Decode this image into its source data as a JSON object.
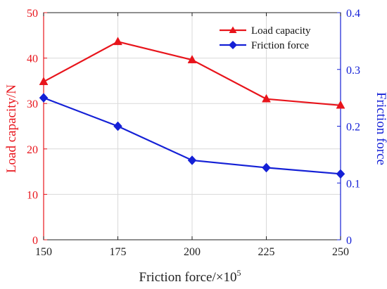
{
  "chart_data": {
    "type": "line",
    "x": [
      150,
      175,
      200,
      225,
      250
    ],
    "xlim": [
      150,
      250
    ],
    "x_ticks": [
      "150",
      "175",
      "200",
      "225",
      "250"
    ],
    "xlabel": "Friction force/×10",
    "xlabel_sup": "5",
    "y_left": {
      "label": "Load capacity/N",
      "lim": [
        0,
        50
      ],
      "ticks": [
        "0",
        "10",
        "20",
        "30",
        "40",
        "50"
      ],
      "color": "#e8141b"
    },
    "y_right": {
      "label": "Friction force",
      "lim": [
        0,
        0.4
      ],
      "ticks": [
        "0",
        "0.1",
        "0.2",
        "0.3",
        "0.4"
      ],
      "color": "#1420d6"
    },
    "grid": true,
    "legend_position": "top-right",
    "series": [
      {
        "name": "Load capacity",
        "axis": "left",
        "marker": "triangle",
        "color": "#e8141b",
        "values": [
          34.8,
          43.6,
          39.6,
          31.0,
          29.6
        ]
      },
      {
        "name": "Friction force",
        "axis": "right",
        "marker": "diamond",
        "color": "#1420d6",
        "values": [
          0.25,
          0.2,
          0.14,
          0.127,
          0.116
        ]
      }
    ]
  }
}
